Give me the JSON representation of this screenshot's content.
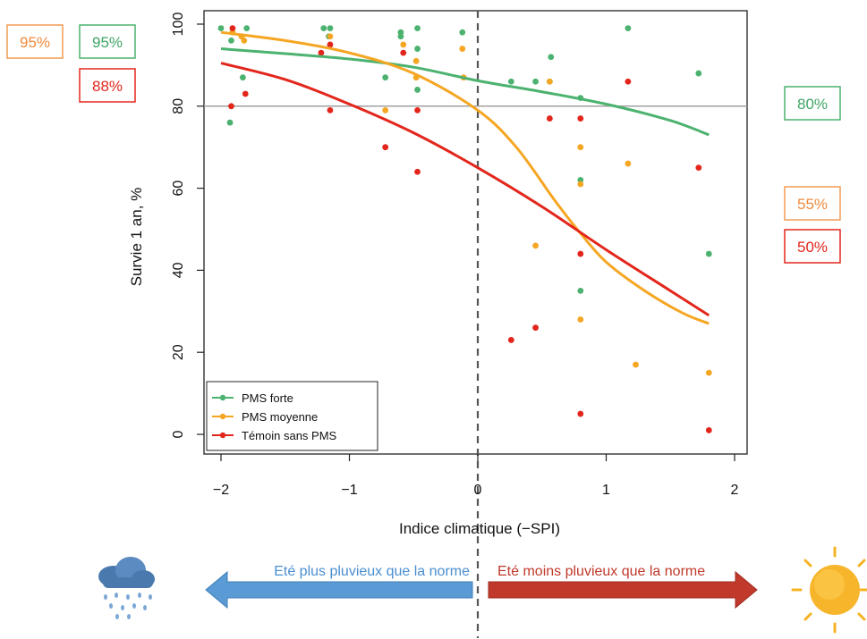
{
  "chart_data": {
    "type": "scatter",
    "xlabel": "Indice climatique (−SPI)",
    "ylabel": "Survie 1 an, %",
    "xlim": [
      -2.2,
      2.2
    ],
    "ylim": [
      -3,
      102
    ],
    "x_ticks": [
      "−2",
      "−1",
      "0",
      "1",
      "2"
    ],
    "x_tick_values": [
      -2,
      -1,
      0,
      1,
      2
    ],
    "y_ticks": [
      "0",
      "20",
      "40",
      "60",
      "80",
      "100"
    ],
    "y_tick_values": [
      0,
      20,
      40,
      60,
      80,
      100
    ],
    "reference_line_y": 80,
    "divider_x": 0,
    "legend_position": "bottom-left",
    "series": [
      {
        "name": "PMS forte",
        "color": "#4cb26f",
        "points": [
          [
            -2.0,
            99
          ],
          [
            -1.93,
            76
          ],
          [
            -1.92,
            96
          ],
          [
            -1.83,
            87
          ],
          [
            -1.8,
            99
          ],
          [
            -1.2,
            99
          ],
          [
            -1.16,
            97
          ],
          [
            -1.15,
            99
          ],
          [
            -0.72,
            87
          ],
          [
            -0.6,
            98
          ],
          [
            -0.6,
            97
          ],
          [
            -0.47,
            99
          ],
          [
            -0.47,
            94
          ],
          [
            -0.47,
            84
          ],
          [
            -0.12,
            98
          ],
          [
            0.26,
            86
          ],
          [
            0.45,
            86
          ],
          [
            0.56,
            86
          ],
          [
            0.57,
            92
          ],
          [
            0.8,
            82
          ],
          [
            0.8,
            62
          ],
          [
            0.8,
            35
          ],
          [
            1.17,
            99
          ],
          [
            1.72,
            88
          ],
          [
            1.8,
            44
          ]
        ],
        "curve": [
          [
            -2.0,
            94
          ],
          [
            -1.5,
            92.8
          ],
          [
            -1.0,
            91.5
          ],
          [
            -0.5,
            89.5
          ],
          [
            0.0,
            86.2
          ],
          [
            0.5,
            83.5
          ],
          [
            1.0,
            80.5
          ],
          [
            1.5,
            76.5
          ],
          [
            1.8,
            73
          ]
        ]
      },
      {
        "name": "PMS moyenne",
        "color": "#f5a623",
        "points": [
          [
            -1.91,
            98
          ],
          [
            -1.84,
            97
          ],
          [
            -1.82,
            96
          ],
          [
            -1.15,
            97
          ],
          [
            -0.72,
            79
          ],
          [
            -0.58,
            95
          ],
          [
            -0.48,
            91
          ],
          [
            -0.48,
            87
          ],
          [
            -0.12,
            94
          ],
          [
            -0.11,
            87
          ],
          [
            0.45,
            46
          ],
          [
            0.56,
            86
          ],
          [
            0.8,
            70
          ],
          [
            0.8,
            61
          ],
          [
            0.8,
            28
          ],
          [
            1.17,
            66
          ],
          [
            1.23,
            17
          ],
          [
            1.8,
            15
          ]
        ],
        "curve": [
          [
            -2.0,
            98
          ],
          [
            -1.5,
            96
          ],
          [
            -1.0,
            93
          ],
          [
            -0.5,
            88
          ],
          [
            0.0,
            79
          ],
          [
            0.3,
            70
          ],
          [
            0.6,
            57
          ],
          [
            0.8,
            49
          ],
          [
            1.0,
            42
          ],
          [
            1.3,
            35
          ],
          [
            1.6,
            29.5
          ],
          [
            1.8,
            27
          ]
        ]
      },
      {
        "name": "Témoin sans PMS",
        "color": "#e3261c",
        "points": [
          [
            -1.91,
            99
          ],
          [
            -1.92,
            80
          ],
          [
            -1.81,
            83
          ],
          [
            -1.22,
            93
          ],
          [
            -1.15,
            95
          ],
          [
            -1.15,
            79
          ],
          [
            -0.72,
            70
          ],
          [
            -0.58,
            93
          ],
          [
            -0.47,
            79
          ],
          [
            -0.47,
            64
          ],
          [
            0.26,
            23
          ],
          [
            0.45,
            26
          ],
          [
            0.56,
            77
          ],
          [
            0.8,
            77
          ],
          [
            0.8,
            44
          ],
          [
            0.8,
            5
          ],
          [
            1.17,
            86
          ],
          [
            1.72,
            65
          ],
          [
            1.8,
            1
          ]
        ],
        "curve": [
          [
            -2.0,
            90.5
          ],
          [
            -1.5,
            86.5
          ],
          [
            -1.0,
            80.5
          ],
          [
            -0.5,
            73.5
          ],
          [
            0.0,
            65
          ],
          [
            0.5,
            55.5
          ],
          [
            1.0,
            45
          ],
          [
            1.5,
            35
          ],
          [
            1.8,
            29
          ]
        ]
      }
    ]
  },
  "callouts": {
    "left_orange": "95%",
    "left_green": "95%",
    "left_red": "88%",
    "right_green": "80%",
    "right_orange": "55%",
    "right_red": "50%"
  },
  "arrows": {
    "left_text": "Eté plus pluvieux que la norme",
    "right_text": "Eté moins pluvieux que la norme",
    "left_color": "#5b9bd5",
    "right_color": "#c0392b"
  },
  "icons": {
    "left": "rain-cloud-icon",
    "right": "sun-icon"
  }
}
